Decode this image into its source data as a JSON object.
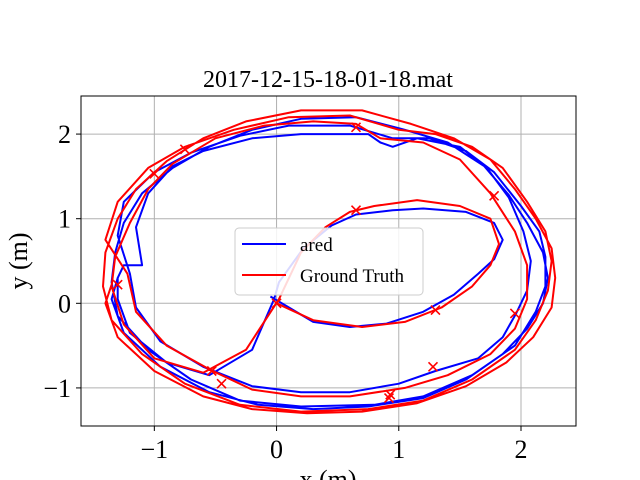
{
  "chart_data": {
    "type": "line",
    "title": "2017-12-15-18-01-18.mat",
    "xlabel": "x (m)",
    "ylabel": "y (m)",
    "xlim": [
      -1.6,
      2.45
    ],
    "ylim": [
      -1.45,
      2.45
    ],
    "xticks": [
      -1,
      0,
      1,
      2
    ],
    "xtick_labels": [
      "−1",
      "0",
      "1",
      "2"
    ],
    "yticks": [
      -1,
      0,
      1,
      2
    ],
    "ytick_labels": [
      "−1",
      "0",
      "1",
      "2"
    ],
    "grid": true,
    "legend": {
      "placement": "center",
      "entries": [
        "ared",
        "Ground Truth"
      ]
    },
    "series": [
      {
        "name": "ared",
        "color": "#0000ff",
        "points": [
          [
            -0.05,
            0.08
          ],
          [
            0.3,
            -0.22
          ],
          [
            0.6,
            -0.28
          ],
          [
            0.9,
            -0.24
          ],
          [
            1.2,
            -0.1
          ],
          [
            1.45,
            0.1
          ],
          [
            1.65,
            0.35
          ],
          [
            1.78,
            0.52
          ],
          [
            1.85,
            0.75
          ],
          [
            1.78,
            0.95
          ],
          [
            1.55,
            1.08
          ],
          [
            1.2,
            1.12
          ],
          [
            0.95,
            1.1
          ],
          [
            0.65,
            1.05
          ],
          [
            0.45,
            0.92
          ],
          [
            0.22,
            0.65
          ],
          [
            0.02,
            0.25
          ],
          [
            -0.02,
            0.05
          ],
          [
            -0.2,
            -0.55
          ],
          [
            -0.55,
            -0.85
          ],
          [
            -0.9,
            -0.7
          ],
          [
            -1.2,
            -0.35
          ],
          [
            -1.3,
            0.05
          ],
          [
            -1.3,
            0.3
          ],
          [
            -1.25,
            0.45
          ],
          [
            -1.1,
            0.45
          ],
          [
            -1.15,
            0.9
          ],
          [
            -1.05,
            1.3
          ],
          [
            -0.85,
            1.62
          ],
          [
            -0.6,
            1.8
          ],
          [
            -0.2,
            1.95
          ],
          [
            0.2,
            2.0
          ],
          [
            0.5,
            2.0
          ],
          [
            0.75,
            2.0
          ],
          [
            0.85,
            1.9
          ],
          [
            0.95,
            1.85
          ],
          [
            1.15,
            1.95
          ],
          [
            1.5,
            1.85
          ],
          [
            1.72,
            1.6
          ],
          [
            1.9,
            1.25
          ],
          [
            2.02,
            0.85
          ],
          [
            2.08,
            0.5
          ],
          [
            2.05,
            0.15
          ],
          [
            1.96,
            -0.12
          ],
          [
            1.85,
            -0.4
          ],
          [
            1.65,
            -0.65
          ],
          [
            1.3,
            -0.8
          ],
          [
            1.0,
            -0.95
          ],
          [
            0.6,
            -1.05
          ],
          [
            0.2,
            -1.05
          ],
          [
            -0.2,
            -0.98
          ],
          [
            -0.6,
            -0.75
          ],
          [
            -0.95,
            -0.45
          ],
          [
            -1.15,
            -0.05
          ],
          [
            -1.2,
            0.35
          ],
          [
            -1.3,
            0.8
          ],
          [
            -1.25,
            1.2
          ],
          [
            -1.0,
            1.55
          ],
          [
            -0.7,
            1.78
          ],
          [
            -0.3,
            1.98
          ],
          [
            0.1,
            2.1
          ],
          [
            0.6,
            2.1
          ],
          [
            0.95,
            1.95
          ],
          [
            1.25,
            1.95
          ],
          [
            1.55,
            1.8
          ],
          [
            1.78,
            1.55
          ],
          [
            2.0,
            1.15
          ],
          [
            2.15,
            0.85
          ],
          [
            2.2,
            0.55
          ],
          [
            2.2,
            0.2
          ],
          [
            2.12,
            -0.1
          ],
          [
            1.95,
            -0.5
          ],
          [
            1.6,
            -0.85
          ],
          [
            1.2,
            -1.1
          ],
          [
            0.8,
            -1.2
          ],
          [
            0.2,
            -1.22
          ],
          [
            -0.3,
            -1.15
          ],
          [
            -0.7,
            -0.9
          ],
          [
            -1.05,
            -0.55
          ],
          [
            -1.3,
            -0.15
          ],
          [
            -1.35,
            0.25
          ],
          [
            -1.32,
            0.6
          ],
          [
            -1.25,
            0.95
          ],
          [
            -1.1,
            1.3
          ],
          [
            -0.85,
            1.6
          ],
          [
            -0.55,
            1.85
          ],
          [
            -0.2,
            2.05
          ],
          [
            0.2,
            2.18
          ],
          [
            0.65,
            2.2
          ],
          [
            1.05,
            2.05
          ],
          [
            1.4,
            1.9
          ],
          [
            1.7,
            1.62
          ],
          [
            1.9,
            1.28
          ],
          [
            2.05,
            0.95
          ],
          [
            2.18,
            0.6
          ],
          [
            2.22,
            0.3
          ],
          [
            2.18,
            0.0
          ],
          [
            2.05,
            -0.3
          ],
          [
            1.85,
            -0.6
          ],
          [
            1.55,
            -0.9
          ],
          [
            1.2,
            -1.12
          ],
          [
            0.75,
            -1.22
          ],
          [
            0.3,
            -1.25
          ],
          [
            -0.15,
            -1.2
          ],
          [
            -0.55,
            -1.05
          ],
          [
            -0.95,
            -0.75
          ],
          [
            -1.25,
            -0.35
          ],
          [
            -1.35,
            0.05
          ],
          [
            -1.3,
            0.3
          ]
        ]
      },
      {
        "name": "Ground Truth",
        "color": "#ff0000",
        "points": [
          [
            0.0,
            0.0
          ],
          [
            0.3,
            -0.2
          ],
          [
            0.7,
            -0.28
          ],
          [
            1.05,
            -0.22
          ],
          [
            1.35,
            -0.05
          ],
          [
            1.6,
            0.2
          ],
          [
            1.75,
            0.45
          ],
          [
            1.82,
            0.7
          ],
          [
            1.75,
            1.0
          ],
          [
            1.5,
            1.15
          ],
          [
            1.15,
            1.22
          ],
          [
            0.8,
            1.15
          ],
          [
            0.6,
            1.08
          ],
          [
            0.4,
            0.9
          ],
          [
            0.2,
            0.6
          ],
          [
            0.02,
            0.05
          ],
          [
            -0.25,
            -0.55
          ],
          [
            -0.6,
            -0.82
          ],
          [
            -1.0,
            -0.65
          ],
          [
            -1.25,
            -0.25
          ],
          [
            -1.35,
            0.2
          ],
          [
            -1.32,
            0.55
          ],
          [
            -1.2,
            0.95
          ],
          [
            -1.05,
            1.35
          ],
          [
            -0.85,
            1.65
          ],
          [
            -0.5,
            1.95
          ],
          [
            -0.1,
            2.1
          ],
          [
            0.3,
            2.15
          ],
          [
            0.65,
            2.12
          ],
          [
            0.85,
            1.95
          ],
          [
            1.2,
            1.9
          ],
          [
            1.5,
            1.7
          ],
          [
            1.75,
            1.3
          ],
          [
            1.95,
            0.85
          ],
          [
            2.05,
            0.45
          ],
          [
            2.05,
            0.05
          ],
          [
            1.95,
            -0.3
          ],
          [
            1.75,
            -0.6
          ],
          [
            1.4,
            -0.85
          ],
          [
            1.05,
            -1.0
          ],
          [
            0.6,
            -1.1
          ],
          [
            0.2,
            -1.1
          ],
          [
            -0.2,
            -1.02
          ],
          [
            -0.55,
            -0.78
          ],
          [
            -0.9,
            -0.5
          ],
          [
            -1.15,
            -0.1
          ],
          [
            -1.22,
            0.35
          ],
          [
            -1.4,
            0.75
          ],
          [
            -1.3,
            1.2
          ],
          [
            -1.05,
            1.6
          ],
          [
            -0.75,
            1.85
          ],
          [
            -0.35,
            2.05
          ],
          [
            0.1,
            2.2
          ],
          [
            0.6,
            2.22
          ],
          [
            1.0,
            2.05
          ],
          [
            1.3,
            2.0
          ],
          [
            1.6,
            1.85
          ],
          [
            1.85,
            1.6
          ],
          [
            2.05,
            1.2
          ],
          [
            2.2,
            0.85
          ],
          [
            2.25,
            0.5
          ],
          [
            2.22,
            0.15
          ],
          [
            2.12,
            -0.2
          ],
          [
            1.95,
            -0.55
          ],
          [
            1.6,
            -0.9
          ],
          [
            1.2,
            -1.15
          ],
          [
            0.75,
            -1.25
          ],
          [
            0.2,
            -1.28
          ],
          [
            -0.3,
            -1.2
          ],
          [
            -0.75,
            -0.95
          ],
          [
            -1.1,
            -0.6
          ],
          [
            -1.35,
            -0.2
          ],
          [
            -1.42,
            0.2
          ],
          [
            -1.4,
            0.6
          ],
          [
            -1.3,
            1.0
          ],
          [
            -1.15,
            1.35
          ],
          [
            -0.9,
            1.68
          ],
          [
            -0.6,
            1.95
          ],
          [
            -0.25,
            2.15
          ],
          [
            0.2,
            2.28
          ],
          [
            0.7,
            2.28
          ],
          [
            1.1,
            2.12
          ],
          [
            1.45,
            1.95
          ],
          [
            1.75,
            1.7
          ],
          [
            1.95,
            1.35
          ],
          [
            2.12,
            1.0
          ],
          [
            2.25,
            0.65
          ],
          [
            2.28,
            0.3
          ],
          [
            2.25,
            -0.05
          ],
          [
            2.1,
            -0.4
          ],
          [
            1.88,
            -0.7
          ],
          [
            1.55,
            -0.98
          ],
          [
            1.15,
            -1.18
          ],
          [
            0.7,
            -1.28
          ],
          [
            0.25,
            -1.3
          ],
          [
            -0.2,
            -1.25
          ],
          [
            -0.6,
            -1.1
          ],
          [
            -1.0,
            -0.8
          ],
          [
            -1.3,
            -0.4
          ],
          [
            -1.4,
            0.0
          ],
          [
            -1.35,
            0.22
          ]
        ]
      }
    ],
    "markers": {
      "symbol": "x",
      "color": "#ff0000",
      "points": [
        [
          0.0,
          0.0
        ],
        [
          0.65,
          1.1
        ],
        [
          1.3,
          -0.08
        ],
        [
          1.78,
          1.27
        ],
        [
          1.28,
          -0.75
        ],
        [
          0.65,
          2.08
        ],
        [
          -0.75,
          1.82
        ],
        [
          -1.0,
          1.53
        ],
        [
          -1.3,
          0.22
        ],
        [
          -0.53,
          -0.8
        ],
        [
          -0.45,
          -0.95
        ],
        [
          0.92,
          -1.12
        ],
        [
          0.93,
          -1.08
        ],
        [
          1.95,
          -0.12
        ]
      ]
    }
  }
}
